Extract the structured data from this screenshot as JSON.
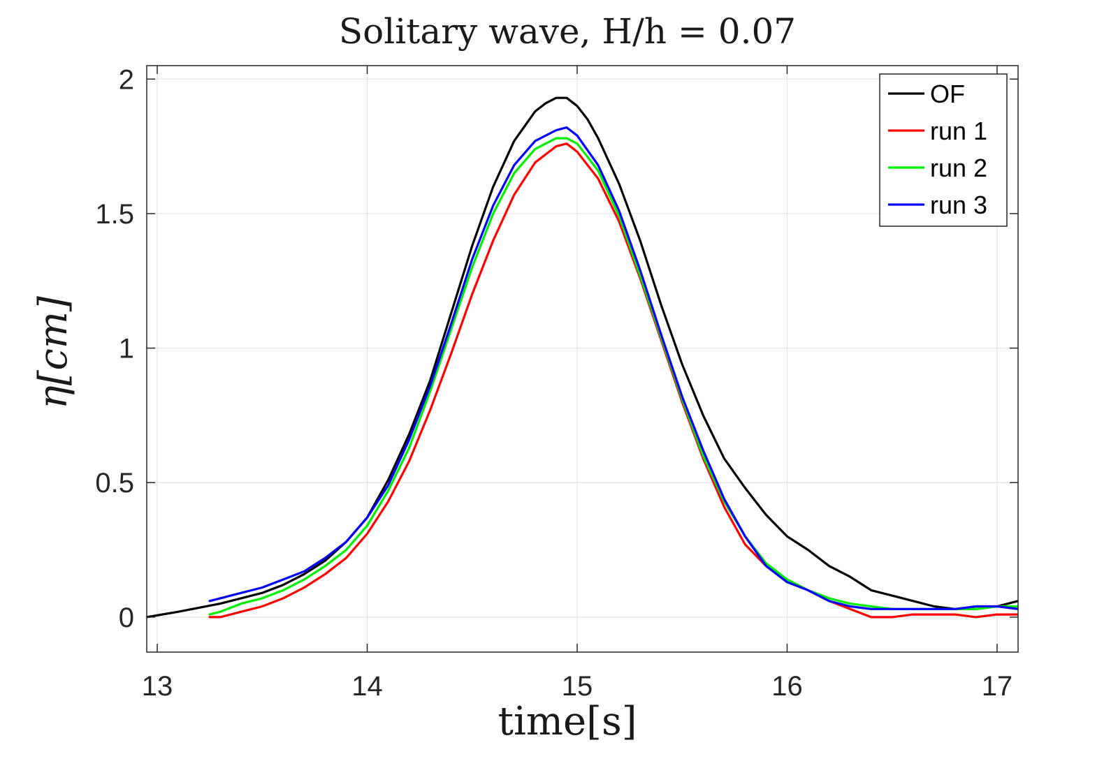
{
  "chart_data": {
    "type": "line",
    "title": "Solitary wave, H/h = 0.07",
    "xlabel": "time[s]",
    "ylabel": "η[cm]",
    "xlim": [
      12.95,
      17.1
    ],
    "ylim": [
      -0.13,
      2.05
    ],
    "xticks": [
      13,
      14,
      15,
      16,
      17
    ],
    "yticks": [
      0,
      0.5,
      1,
      1.5,
      2
    ],
    "xtick_labels": [
      "13",
      "14",
      "15",
      "16",
      "17"
    ],
    "ytick_labels": [
      "0",
      "0.5",
      "1",
      "1.5",
      "2"
    ],
    "grid": true,
    "legend_position": "top-right",
    "series": [
      {
        "name": "OF",
        "color": "#000000",
        "x": [
          12.95,
          13.1,
          13.3,
          13.5,
          13.6,
          13.7,
          13.8,
          13.9,
          14.0,
          14.1,
          14.2,
          14.3,
          14.4,
          14.5,
          14.6,
          14.7,
          14.8,
          14.85,
          14.9,
          14.95,
          15.0,
          15.05,
          15.1,
          15.2,
          15.3,
          15.4,
          15.5,
          15.6,
          15.7,
          15.8,
          15.9,
          16.0,
          16.1,
          16.2,
          16.3,
          16.4,
          16.5,
          16.6,
          16.7,
          16.8,
          16.9,
          17.0,
          17.1
        ],
        "y": [
          0.0,
          0.02,
          0.05,
          0.09,
          0.12,
          0.16,
          0.21,
          0.28,
          0.37,
          0.51,
          0.68,
          0.88,
          1.13,
          1.38,
          1.6,
          1.77,
          1.88,
          1.91,
          1.93,
          1.93,
          1.9,
          1.85,
          1.78,
          1.61,
          1.4,
          1.16,
          0.94,
          0.75,
          0.59,
          0.48,
          0.38,
          0.3,
          0.25,
          0.19,
          0.15,
          0.1,
          0.08,
          0.06,
          0.04,
          0.03,
          0.03,
          0.04,
          0.06
        ]
      },
      {
        "name": "run 1",
        "color": "#ff0000",
        "x": [
          13.25,
          13.3,
          13.4,
          13.5,
          13.6,
          13.7,
          13.8,
          13.9,
          14.0,
          14.1,
          14.2,
          14.3,
          14.4,
          14.5,
          14.6,
          14.7,
          14.8,
          14.9,
          14.95,
          15.0,
          15.1,
          15.2,
          15.3,
          15.4,
          15.5,
          15.6,
          15.7,
          15.8,
          15.9,
          16.0,
          16.1,
          16.2,
          16.3,
          16.4,
          16.5,
          16.6,
          16.7,
          16.8,
          16.9,
          17.0,
          17.1
        ],
        "y": [
          0.0,
          0.0,
          0.02,
          0.04,
          0.07,
          0.11,
          0.16,
          0.22,
          0.31,
          0.43,
          0.58,
          0.77,
          0.98,
          1.2,
          1.4,
          1.57,
          1.69,
          1.75,
          1.76,
          1.73,
          1.63,
          1.47,
          1.26,
          1.03,
          0.8,
          0.59,
          0.41,
          0.27,
          0.19,
          0.14,
          0.1,
          0.06,
          0.03,
          0.0,
          0.0,
          0.01,
          0.01,
          0.01,
          0.0,
          0.01,
          0.01
        ]
      },
      {
        "name": "run 2",
        "color": "#00ee00",
        "x": [
          13.25,
          13.3,
          13.4,
          13.5,
          13.6,
          13.7,
          13.8,
          13.9,
          14.0,
          14.1,
          14.2,
          14.3,
          14.4,
          14.5,
          14.6,
          14.7,
          14.8,
          14.9,
          14.95,
          15.0,
          15.1,
          15.2,
          15.3,
          15.4,
          15.5,
          15.6,
          15.7,
          15.8,
          15.9,
          16.0,
          16.1,
          16.2,
          16.3,
          16.4,
          16.5,
          16.6,
          16.7,
          16.8,
          16.9,
          17.0,
          17.1
        ],
        "y": [
          0.01,
          0.02,
          0.05,
          0.07,
          0.1,
          0.14,
          0.19,
          0.25,
          0.34,
          0.47,
          0.63,
          0.84,
          1.07,
          1.3,
          1.5,
          1.65,
          1.74,
          1.78,
          1.78,
          1.76,
          1.66,
          1.49,
          1.27,
          1.04,
          0.81,
          0.6,
          0.43,
          0.3,
          0.2,
          0.14,
          0.1,
          0.07,
          0.05,
          0.04,
          0.03,
          0.03,
          0.03,
          0.03,
          0.03,
          0.04,
          0.04
        ]
      },
      {
        "name": "run 3",
        "color": "#0000ff",
        "x": [
          13.25,
          13.3,
          13.4,
          13.5,
          13.6,
          13.7,
          13.8,
          13.9,
          14.0,
          14.1,
          14.2,
          14.3,
          14.4,
          14.5,
          14.6,
          14.7,
          14.8,
          14.9,
          14.95,
          15.0,
          15.1,
          15.2,
          15.3,
          15.4,
          15.5,
          15.6,
          15.7,
          15.8,
          15.9,
          16.0,
          16.1,
          16.2,
          16.3,
          16.4,
          16.5,
          16.6,
          16.7,
          16.8,
          16.9,
          17.0,
          17.1
        ],
        "y": [
          0.06,
          0.07,
          0.09,
          0.11,
          0.14,
          0.17,
          0.22,
          0.28,
          0.37,
          0.49,
          0.66,
          0.86,
          1.09,
          1.33,
          1.53,
          1.68,
          1.77,
          1.81,
          1.82,
          1.79,
          1.68,
          1.51,
          1.29,
          1.05,
          0.82,
          0.62,
          0.44,
          0.3,
          0.19,
          0.13,
          0.1,
          0.06,
          0.04,
          0.03,
          0.03,
          0.03,
          0.03,
          0.03,
          0.04,
          0.04,
          0.03
        ]
      }
    ]
  }
}
